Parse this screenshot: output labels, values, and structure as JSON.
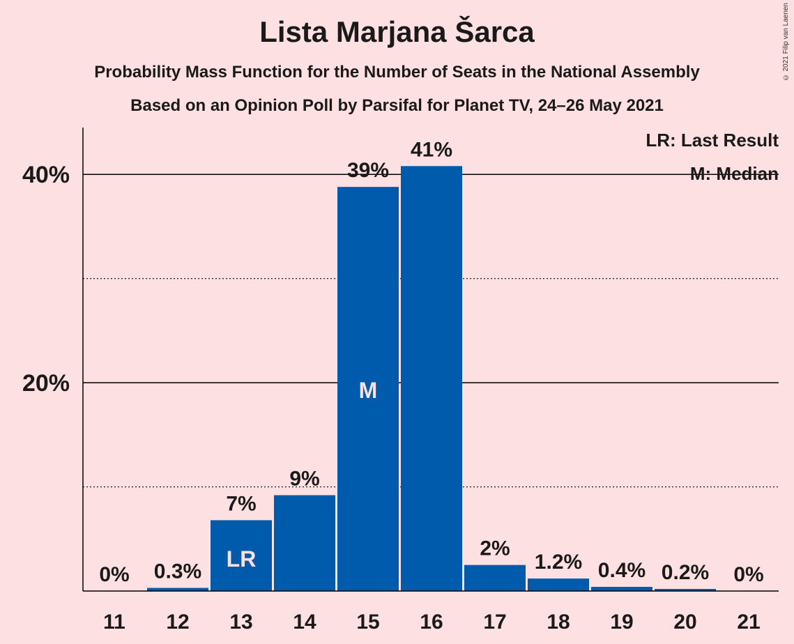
{
  "header": {
    "title": "Lista Marjana Šarca",
    "subtitle": "Probability Mass Function for the Number of Seats in the National Assembly",
    "source": "Based on an Opinion Poll by Parsifal for Planet TV, 24–26 May 2021",
    "copyright": "© 2021 Filip van Laenen"
  },
  "legend": {
    "last_result": "LR: Last Result",
    "median": "M: Median"
  },
  "colors": {
    "background": "#FDE0E1",
    "bar": "#005BAC",
    "text": "#1a1a1a"
  },
  "chart_data": {
    "type": "bar",
    "categories": [
      "11",
      "12",
      "13",
      "14",
      "15",
      "16",
      "17",
      "18",
      "19",
      "20",
      "21"
    ],
    "values": [
      0,
      0.3,
      6.8,
      9.2,
      38.8,
      40.8,
      2.5,
      1.2,
      0.4,
      0.2,
      0
    ],
    "data_labels": [
      "0%",
      "0.3%",
      "7%",
      "9%",
      "39%",
      "41%",
      "2%",
      "1.2%",
      "0.4%",
      "0.2%",
      "0%"
    ],
    "bar_markers": {
      "13": "LR",
      "15": "M"
    },
    "ylim": [
      0,
      44.5
    ],
    "yticks": [
      20,
      40
    ],
    "ytick_labels": [
      "20%",
      "40%"
    ],
    "minor_gridlines": [
      10,
      30
    ],
    "major_gridlines": [
      20,
      40
    ],
    "legend_position": "top-right"
  }
}
